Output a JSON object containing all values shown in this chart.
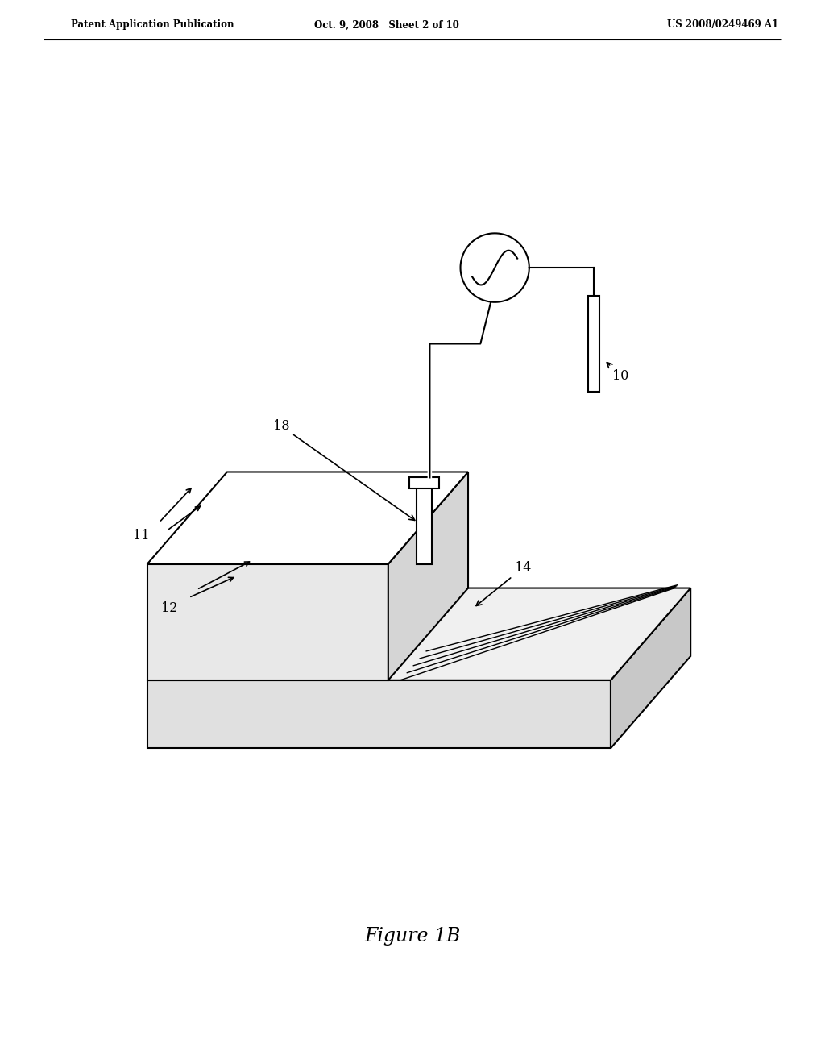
{
  "bg_color": "#ffffff",
  "line_color": "#000000",
  "header_left": "Patent Application Publication",
  "header_center": "Oct. 9, 2008   Sheet 2 of 10",
  "header_right": "US 2008/0249469 A1",
  "figure_label": "Figure 1B",
  "n_fins": 13,
  "figsize": [
    10.24,
    13.2
  ],
  "dpi": 100
}
